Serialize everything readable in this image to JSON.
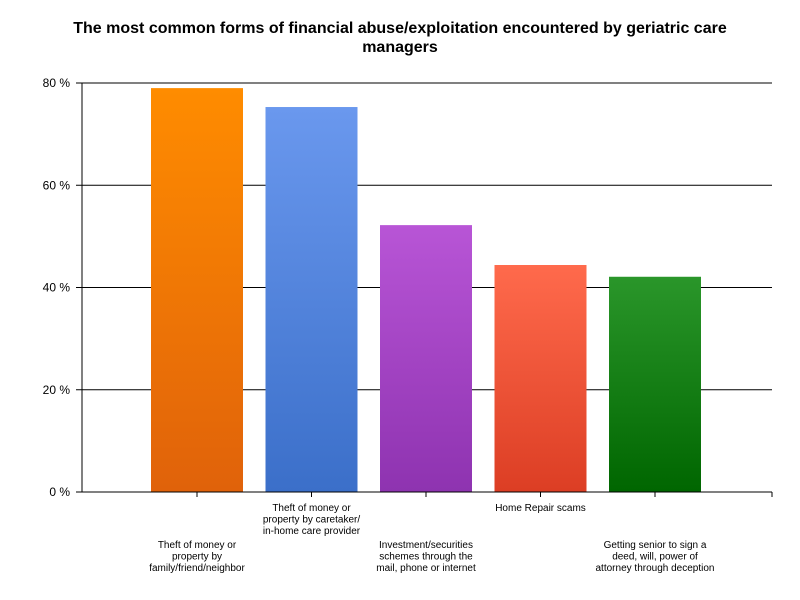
{
  "chart_data": {
    "type": "bar",
    "title_lines": [
      "The most common forms of financial abuse/exploitation encountered by geriatric care",
      "managers"
    ],
    "xlabel": "",
    "ylabel": "",
    "ylim": [
      0,
      80
    ],
    "yticks": [
      0,
      20,
      40,
      60,
      80
    ],
    "y_tick_labels": [
      "0 %",
      "20 %",
      "40 %",
      "60 %",
      "80 %"
    ],
    "grid": true,
    "legend": "none",
    "categories": [
      {
        "label_lines": [
          "Theft of money or",
          "property by",
          "family/friend/neighbor"
        ],
        "label_position": "low",
        "value": 79,
        "color_top": "#ff8c00",
        "color_bottom": "#e0620a"
      },
      {
        "label_lines": [
          "Theft of money or",
          "property by caretaker/",
          "in-home care provider"
        ],
        "label_position": "high",
        "value": 75.3,
        "color_top": "#6a98ee",
        "color_bottom": "#3b6fc9"
      },
      {
        "label_lines": [
          "Investment/securities",
          "schemes through the",
          "mail, phone or internet"
        ],
        "label_position": "low",
        "value": 52.2,
        "color_top": "#b855d6",
        "color_bottom": "#8e33b0"
      },
      {
        "label_lines": [
          "Home Repair scams"
        ],
        "label_position": "high",
        "value": 44.4,
        "color_top": "#ff6a4c",
        "color_bottom": "#dc3e24"
      },
      {
        "label_lines": [
          "Getting senior to sign a",
          "deed, will, power of",
          "attorney through deception"
        ],
        "label_position": "low",
        "value": 42.1,
        "color_top": "#2a962a",
        "color_bottom": "#006600"
      }
    ]
  }
}
